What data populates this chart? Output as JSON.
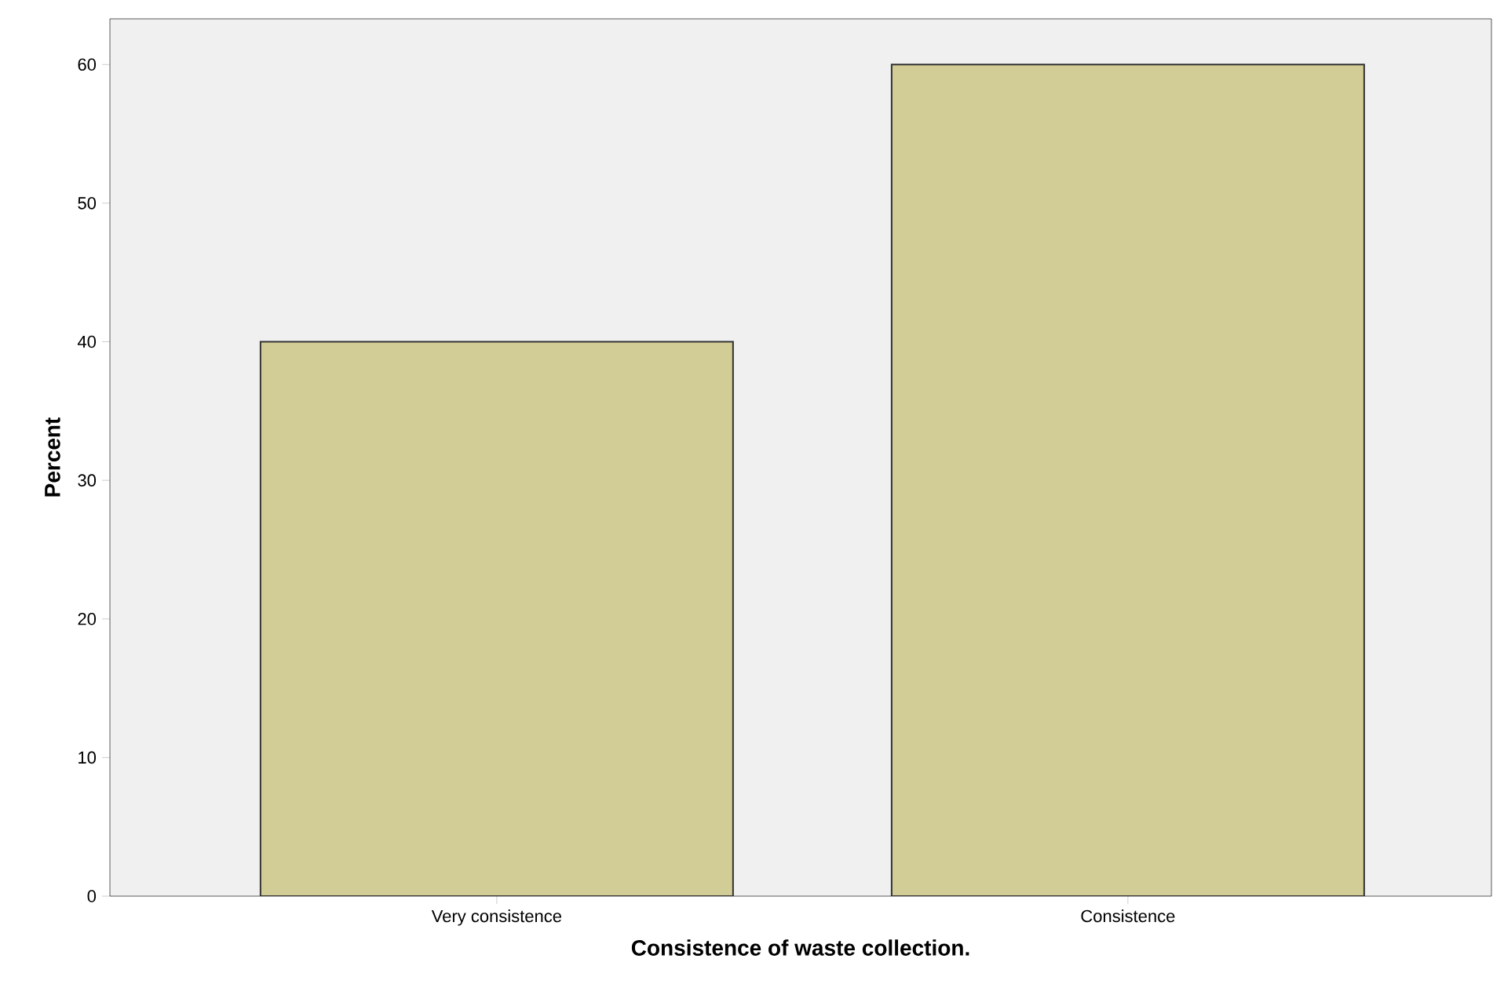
{
  "chart_data": {
    "type": "bar",
    "xlabel": "Consistence of waste collection.",
    "ylabel": "Percent",
    "categories": [
      "Very consistence",
      "Consistence"
    ],
    "values": [
      40,
      60
    ],
    "color": "#d2cc96",
    "ylim": [
      0,
      63.3
    ],
    "yticks": [
      0,
      10,
      20,
      30,
      40,
      50,
      60
    ],
    "grid": false
  }
}
